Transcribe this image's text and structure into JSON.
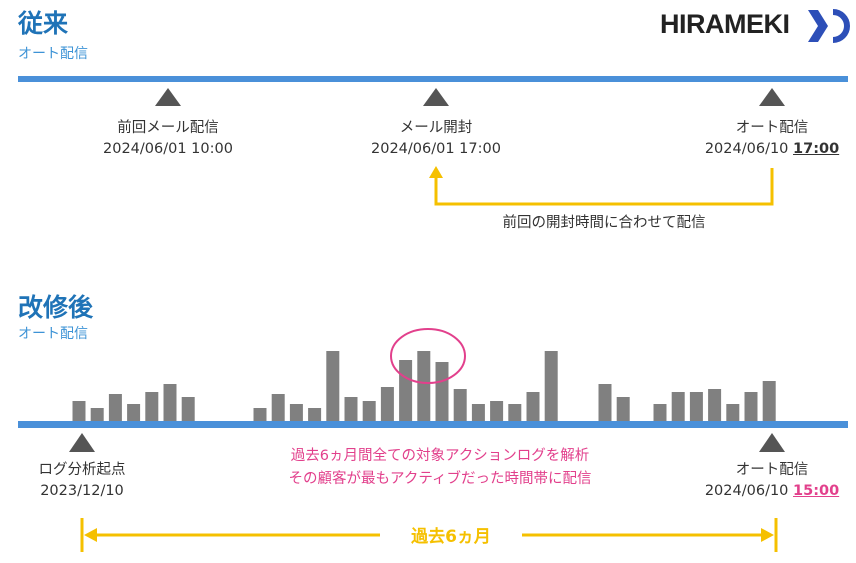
{
  "colors": {
    "title": "#1f73b7",
    "timeline": "#4a90d9",
    "marker": "#555555",
    "bracket": "#f5c000",
    "highlight": "#e2408c",
    "bar": "#808080"
  },
  "logo": {
    "text": "HIRAMEKI"
  },
  "before": {
    "title": "従来",
    "subtitle": "オート配信",
    "events": [
      {
        "label": "前回メール配信",
        "datetime": "2024/06/01 10:00"
      },
      {
        "label": "メール開封",
        "datetime": "2024/06/01 17:00"
      },
      {
        "label": "オート配信",
        "date": "2024/06/10",
        "time": "17:00"
      }
    ],
    "bracket_label": "前回の開封時間に合わせて配信"
  },
  "after": {
    "title": "改修後",
    "subtitle": "オート配信",
    "start": {
      "label": "ログ分析起点",
      "date": "2023/12/10"
    },
    "end": {
      "label": "オート配信",
      "date": "2024/06/10",
      "time": "15:00"
    },
    "note_line1": "過去6ヵ月間全ての対象アクションログを解析",
    "note_line2": "その顧客が最もアクティブだった時間帯に配信",
    "period_label": "過去6ヵ月"
  },
  "chart_data": {
    "type": "bar",
    "groups": [
      [
        20,
        13,
        27,
        17,
        29,
        37,
        24
      ],
      [
        13,
        27,
        17,
        13,
        70,
        24,
        20,
        34,
        61,
        70,
        59,
        32,
        17,
        20,
        17,
        29,
        70
      ],
      [
        37,
        24
      ],
      [
        17,
        29,
        29,
        32,
        17,
        29,
        40
      ]
    ],
    "highlighted": [
      [
        1,
        8
      ],
      [
        1,
        9
      ],
      [
        1,
        10
      ]
    ]
  }
}
